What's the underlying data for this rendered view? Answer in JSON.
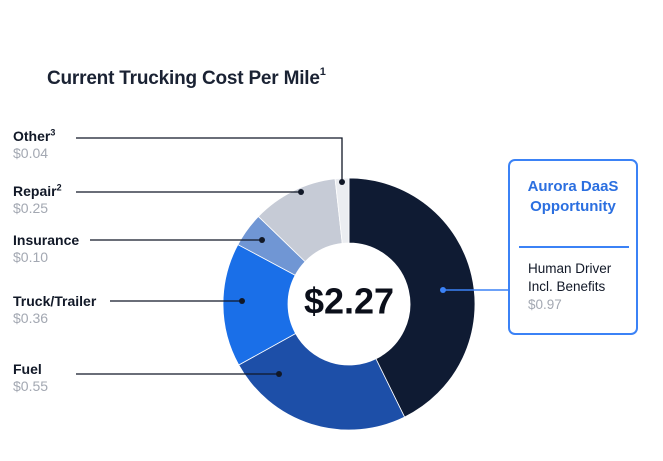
{
  "chart_data": {
    "type": "pie",
    "title": "Current Trucking Cost Per Mile",
    "title_superscript": "1",
    "center_label": "$2.27",
    "slices": [
      {
        "name": "Human Driver Incl. Benefits",
        "value": 0.97,
        "color": "#0f1b33"
      },
      {
        "name": "Fuel",
        "value": 0.55,
        "color": "#1d4fa8"
      },
      {
        "name": "Truck/Trailer",
        "value": 0.36,
        "color": "#1a6fe8"
      },
      {
        "name": "Insurance",
        "value": 0.1,
        "color": "#7096d4"
      },
      {
        "name": "Repair",
        "value": 0.25,
        "color": "#c6cbd6"
      },
      {
        "name": "Other",
        "value": 0.04,
        "color": "#ebedf1"
      }
    ]
  },
  "labels": {
    "other": {
      "name": "Other",
      "sup": "3",
      "value": "$0.04"
    },
    "repair": {
      "name": "Repair",
      "sup": "2",
      "value": "$0.25"
    },
    "insurance": {
      "name": "Insurance",
      "value": "$0.10"
    },
    "truck": {
      "name": "Truck/Trailer",
      "value": "$0.36"
    },
    "fuel": {
      "name": "Fuel",
      "value": "$0.55"
    }
  },
  "callout": {
    "title_line1": "Aurora DaaS",
    "title_line2": "Opportunity",
    "item_line1": "Human Driver",
    "item_line2": "Incl. Benefits",
    "value": "$0.97",
    "accent": "#2b6fe0"
  }
}
